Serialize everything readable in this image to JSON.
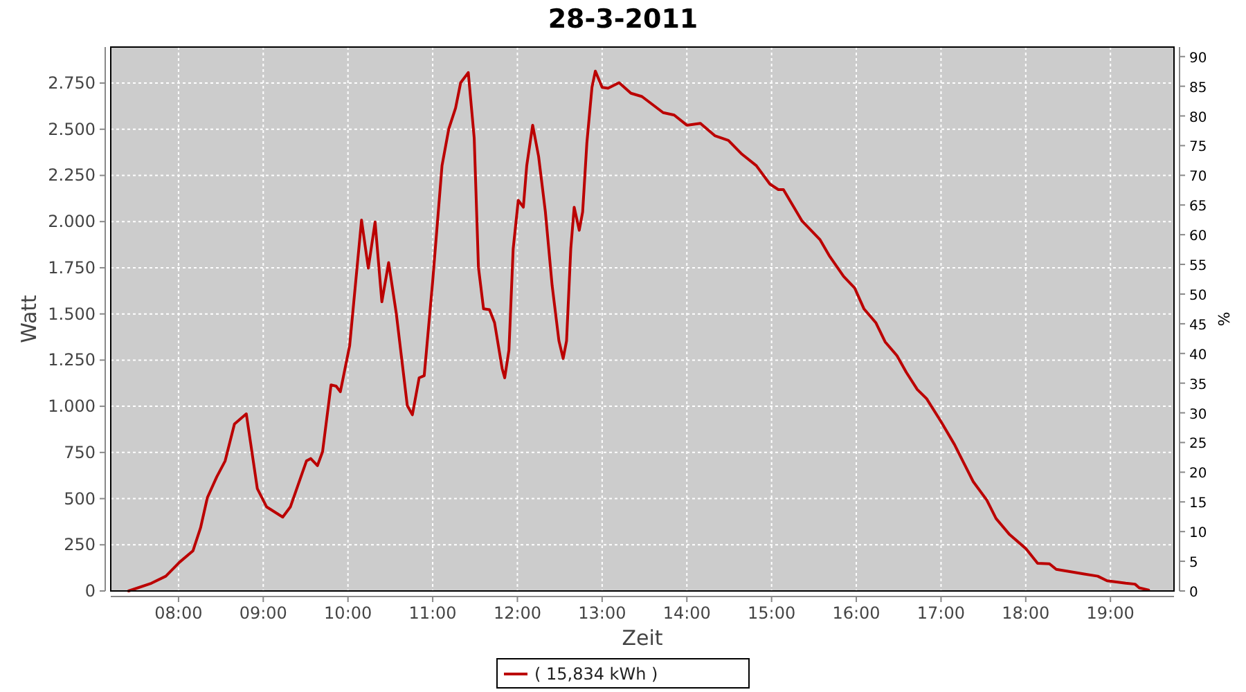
{
  "chart_data": {
    "type": "line",
    "title": "28-3-2011",
    "xlabel": "Zeit",
    "ylabel": "Watt",
    "y2label": "%",
    "xlim": [
      7.2,
      19.75
    ],
    "xticks": [
      {
        "value": 8,
        "label": "08:00"
      },
      {
        "value": 9,
        "label": "09:00"
      },
      {
        "value": 10,
        "label": "10:00"
      },
      {
        "value": 11,
        "label": "11:00"
      },
      {
        "value": 12,
        "label": "12:00"
      },
      {
        "value": 13,
        "label": "13:00"
      },
      {
        "value": 14,
        "label": "14:00"
      },
      {
        "value": 15,
        "label": "15:00"
      },
      {
        "value": 16,
        "label": "16:00"
      },
      {
        "value": 17,
        "label": "17:00"
      },
      {
        "value": 18,
        "label": "18:00"
      },
      {
        "value": 19,
        "label": "19:00"
      }
    ],
    "ylim": [
      0,
      2945
    ],
    "yticks": [
      0,
      250,
      500,
      750,
      {
        "value": 1000,
        "label": "1.000"
      },
      {
        "value": 1250,
        "label": "1.250"
      },
      {
        "value": 1500,
        "label": "1.500"
      },
      {
        "value": 1750,
        "label": "1.750"
      },
      {
        "value": 2000,
        "label": "2.000"
      },
      {
        "value": 2250,
        "label": "2.250"
      },
      {
        "value": 2500,
        "label": "2.500"
      },
      {
        "value": 2750,
        "label": "2.750"
      }
    ],
    "y2lim": [
      0,
      91.6
    ],
    "y2ticks": [
      0,
      5,
      10,
      15,
      20,
      25,
      30,
      35,
      40,
      45,
      50,
      55,
      60,
      65,
      70,
      75,
      80,
      85,
      90
    ],
    "grid": true,
    "legend": "bottom",
    "line_style": "solid",
    "series": [
      {
        "name": "( 15,834 kWh )",
        "color": "#bb0000",
        "x": [
          7.41,
          7.68,
          7.85,
          8.01,
          8.17,
          8.26,
          8.34,
          8.45,
          8.55,
          8.66,
          8.8,
          8.85,
          8.93,
          9.04,
          9.23,
          9.32,
          9.51,
          9.56,
          9.64,
          9.7,
          9.8,
          9.86,
          9.91,
          10.02,
          10.16,
          10.24,
          10.32,
          10.4,
          10.48,
          10.57,
          10.7,
          10.76,
          10.84,
          10.9,
          11.0,
          11.11,
          11.19,
          11.27,
          11.33,
          11.42,
          11.49,
          11.54,
          11.6,
          11.67,
          11.73,
          11.82,
          11.85,
          11.9,
          11.95,
          12.01,
          12.07,
          12.11,
          12.18,
          12.25,
          12.33,
          12.41,
          12.49,
          12.54,
          12.58,
          12.63,
          12.67,
          12.73,
          12.77,
          12.82,
          12.88,
          12.92,
          13.0,
          13.07,
          13.2,
          13.34,
          13.47,
          13.72,
          13.85,
          14.0,
          14.16,
          14.33,
          14.49,
          14.65,
          14.82,
          14.98,
          15.08,
          15.14,
          15.36,
          15.57,
          15.68,
          15.85,
          15.98,
          16.09,
          16.23,
          16.34,
          16.48,
          16.59,
          16.72,
          16.83,
          17.0,
          17.16,
          17.27,
          17.38,
          17.54,
          17.65,
          17.81,
          18.0,
          18.14,
          18.28,
          18.36,
          18.52,
          18.69,
          18.85,
          18.96,
          19.18,
          19.29,
          19.34,
          19.45
        ],
        "values": [
          0,
          42,
          80,
          155,
          217,
          342,
          505,
          617,
          704,
          904,
          959,
          804,
          554,
          455,
          400,
          455,
          704,
          717,
          679,
          754,
          1116,
          1109,
          1079,
          1329,
          2008,
          1748,
          1998,
          1566,
          1778,
          1503,
          1004,
          954,
          1154,
          1166,
          1678,
          2303,
          2502,
          2615,
          2752,
          2807,
          2452,
          1753,
          1528,
          1523,
          1453,
          1204,
          1154,
          1304,
          1853,
          2115,
          2078,
          2303,
          2522,
          2353,
          2053,
          1653,
          1354,
          1259,
          1354,
          1853,
          2078,
          1953,
          2053,
          2428,
          2727,
          2815,
          2727,
          2722,
          2752,
          2695,
          2677,
          2590,
          2577,
          2522,
          2532,
          2465,
          2440,
          2365,
          2303,
          2203,
          2173,
          2173,
          2003,
          1903,
          1816,
          1703,
          1641,
          1528,
          1453,
          1349,
          1274,
          1184,
          1091,
          1041,
          917,
          792,
          692,
          592,
          492,
          392,
          305,
          230,
          150,
          147,
          117,
          105,
          92,
          80,
          55,
          42,
          37,
          17,
          5
        ]
      }
    ]
  }
}
